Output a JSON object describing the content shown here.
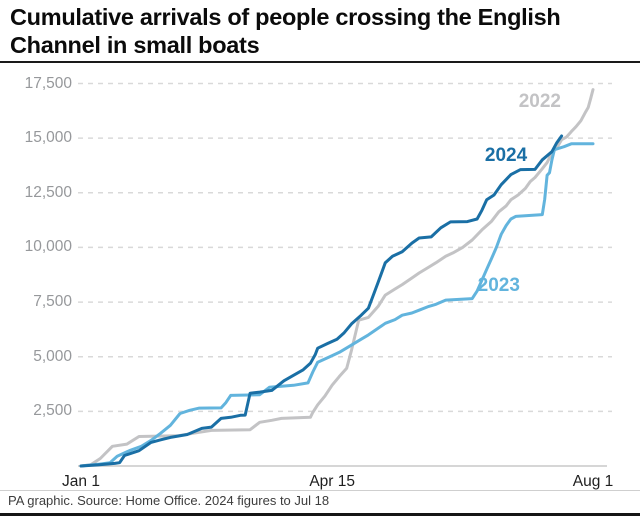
{
  "header": {
    "title": "Cumulative arrivals of people crossing the English Channel in small boats"
  },
  "footer": {
    "source": "PA graphic. Source: Home Office. 2024 figures to Jul 18"
  },
  "colors": {
    "series_2022": "#c3c3c5",
    "series_2023": "#62b4dd",
    "series_2024": "#1a6fa5",
    "gridline": "#d9d9d9",
    "baseline": "#c9c9c9",
    "ytick_text": "#96989b",
    "xtick_text": "#1f1f1f"
  },
  "chart_data": {
    "type": "line",
    "title": "Cumulative arrivals of people crossing the English Channel in small boats",
    "xlabel": "",
    "ylabel": "",
    "x_unit": "day of year (Jan 1 = 0)",
    "xlim_days": [
      0,
      212
    ],
    "ylim": [
      0,
      17500
    ],
    "grid": "dashed horizontal",
    "legend_position": "inline labels on lines",
    "x_axis_ticks": [
      {
        "label": "Jan 1",
        "day": 0
      },
      {
        "label": "Apr 15",
        "day": 104
      },
      {
        "label": "Aug 1",
        "day": 212
      }
    ],
    "y_axis_ticks": [
      {
        "label": "2,500",
        "value": 2500
      },
      {
        "label": "5,000",
        "value": 5000
      },
      {
        "label": "7,500",
        "value": 7500
      },
      {
        "label": "10,000",
        "value": 10000
      },
      {
        "label": "12,500",
        "value": 12500
      },
      {
        "label": "15,000",
        "value": 15000
      },
      {
        "label": "17,500",
        "value": 17500
      }
    ],
    "series": [
      {
        "name": "2022",
        "color": "#c3c3c5",
        "label_at": {
          "day": 190,
          "value": 16650
        },
        "end_note": "runs to Aug 1",
        "points": [
          [
            0,
            0
          ],
          [
            4,
            60
          ],
          [
            8,
            345
          ],
          [
            13,
            900
          ],
          [
            19,
            1000
          ],
          [
            24,
            1350
          ],
          [
            40,
            1380
          ],
          [
            49,
            1540
          ],
          [
            54,
            1630
          ],
          [
            70,
            1660
          ],
          [
            74,
            2000
          ],
          [
            79,
            2090
          ],
          [
            83,
            2180
          ],
          [
            95,
            2230
          ],
          [
            96,
            2450
          ],
          [
            98,
            2800
          ],
          [
            101,
            3200
          ],
          [
            104,
            3700
          ],
          [
            107,
            4100
          ],
          [
            110,
            4470
          ],
          [
            112,
            5300
          ],
          [
            115,
            6670
          ],
          [
            119,
            6800
          ],
          [
            123,
            7300
          ],
          [
            126,
            7820
          ],
          [
            130,
            8100
          ],
          [
            133,
            8300
          ],
          [
            137,
            8600
          ],
          [
            140,
            8830
          ],
          [
            144,
            9100
          ],
          [
            147,
            9300
          ],
          [
            151,
            9600
          ],
          [
            154,
            9750
          ],
          [
            158,
            10000
          ],
          [
            162,
            10340
          ],
          [
            166,
            10800
          ],
          [
            170,
            11200
          ],
          [
            173,
            11630
          ],
          [
            176,
            11900
          ],
          [
            178,
            12180
          ],
          [
            181,
            12400
          ],
          [
            184,
            12700
          ],
          [
            186,
            13010
          ],
          [
            188,
            13200
          ],
          [
            191,
            13600
          ],
          [
            193,
            13880
          ],
          [
            195,
            14330
          ],
          [
            197,
            14560
          ],
          [
            199,
            14930
          ],
          [
            201,
            15050
          ],
          [
            203,
            15300
          ],
          [
            205,
            15530
          ],
          [
            207,
            15800
          ],
          [
            209,
            16215
          ],
          [
            210,
            16400
          ],
          [
            211,
            16800
          ],
          [
            212,
            17220
          ]
        ]
      },
      {
        "name": "2023",
        "color": "#62b4dd",
        "label_at": {
          "day": 173,
          "value": 8230
        },
        "end_note": "runs to Aug 1",
        "points": [
          [
            0,
            0
          ],
          [
            7,
            80
          ],
          [
            12,
            150
          ],
          [
            15,
            450
          ],
          [
            20,
            700
          ],
          [
            25,
            900
          ],
          [
            29,
            1170
          ],
          [
            33,
            1500
          ],
          [
            37,
            1860
          ],
          [
            41,
            2400
          ],
          [
            45,
            2550
          ],
          [
            49,
            2650
          ],
          [
            58,
            2660
          ],
          [
            60,
            2900
          ],
          [
            62,
            3230
          ],
          [
            74,
            3260
          ],
          [
            78,
            3600
          ],
          [
            88,
            3690
          ],
          [
            94,
            3800
          ],
          [
            96,
            4300
          ],
          [
            98,
            4750
          ],
          [
            103,
            5000
          ],
          [
            107,
            5200
          ],
          [
            112,
            5530
          ],
          [
            116,
            5800
          ],
          [
            119,
            6000
          ],
          [
            123,
            6300
          ],
          [
            126,
            6530
          ],
          [
            130,
            6700
          ],
          [
            133,
            6900
          ],
          [
            137,
            7000
          ],
          [
            140,
            7130
          ],
          [
            144,
            7300
          ],
          [
            147,
            7400
          ],
          [
            151,
            7590
          ],
          [
            162,
            7660
          ],
          [
            164,
            8000
          ],
          [
            166,
            8500
          ],
          [
            168,
            9000
          ],
          [
            170,
            9500
          ],
          [
            172,
            10000
          ],
          [
            174,
            10600
          ],
          [
            176,
            11000
          ],
          [
            178,
            11300
          ],
          [
            180,
            11420
          ],
          [
            191,
            11500
          ],
          [
            192,
            12200
          ],
          [
            193,
            13300
          ],
          [
            194,
            13420
          ],
          [
            195,
            14000
          ],
          [
            196,
            14470
          ],
          [
            200,
            14610
          ],
          [
            203,
            14740
          ],
          [
            212,
            14740
          ]
        ]
      },
      {
        "name": "2024",
        "color": "#1a6fa5",
        "label_at": {
          "day": 176,
          "value": 14180
        },
        "end_note": "figures to Jul 18",
        "points": [
          [
            0,
            0
          ],
          [
            7,
            50
          ],
          [
            14,
            120
          ],
          [
            16,
            150
          ],
          [
            18,
            480
          ],
          [
            24,
            700
          ],
          [
            29,
            1080
          ],
          [
            33,
            1200
          ],
          [
            37,
            1310
          ],
          [
            44,
            1440
          ],
          [
            50,
            1720
          ],
          [
            54,
            1780
          ],
          [
            58,
            2180
          ],
          [
            62,
            2230
          ],
          [
            66,
            2320
          ],
          [
            68,
            2330
          ],
          [
            70,
            3330
          ],
          [
            74,
            3380
          ],
          [
            79,
            3460
          ],
          [
            84,
            3900
          ],
          [
            88,
            4150
          ],
          [
            92,
            4400
          ],
          [
            95,
            4700
          ],
          [
            97,
            5100
          ],
          [
            98,
            5390
          ],
          [
            102,
            5600
          ],
          [
            106,
            5800
          ],
          [
            109,
            6100
          ],
          [
            112,
            6500
          ],
          [
            116,
            6900
          ],
          [
            119,
            7220
          ],
          [
            121,
            7800
          ],
          [
            123,
            8400
          ],
          [
            126,
            9300
          ],
          [
            129,
            9600
          ],
          [
            133,
            9800
          ],
          [
            137,
            10200
          ],
          [
            140,
            10430
          ],
          [
            145,
            10480
          ],
          [
            149,
            10900
          ],
          [
            153,
            11170
          ],
          [
            160,
            11180
          ],
          [
            164,
            11300
          ],
          [
            166,
            11700
          ],
          [
            168,
            12180
          ],
          [
            171,
            12400
          ],
          [
            174,
            12870
          ],
          [
            178,
            13330
          ],
          [
            182,
            13560
          ],
          [
            188,
            13570
          ],
          [
            191,
            14010
          ],
          [
            195,
            14380
          ],
          [
            197,
            14790
          ],
          [
            199,
            15100
          ]
        ]
      }
    ]
  }
}
